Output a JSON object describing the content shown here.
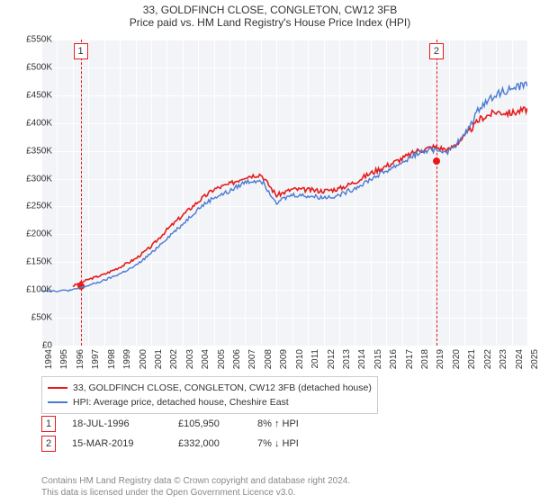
{
  "title_line1": "33, GOLDFINCH CLOSE, CONGLETON, CW12 3FB",
  "title_line2": "Price paid vs. HM Land Registry's House Price Index (HPI)",
  "chart": {
    "type": "line",
    "background_color": "#f2f4f8",
    "grid_color": "#ffffff",
    "ylim": [
      0,
      550000
    ],
    "ytick_step": 50000,
    "yticklabels": [
      "£0",
      "£50K",
      "£100K",
      "£150K",
      "£200K",
      "£250K",
      "£300K",
      "£350K",
      "£400K",
      "£450K",
      "£500K",
      "£550K"
    ],
    "x_years": [
      1994,
      1995,
      1996,
      1997,
      1998,
      1999,
      2000,
      2001,
      2002,
      2003,
      2004,
      2005,
      2006,
      2007,
      2008,
      2009,
      2010,
      2011,
      2012,
      2013,
      2014,
      2015,
      2016,
      2017,
      2018,
      2019,
      2020,
      2021,
      2022,
      2023,
      2024,
      2025
    ],
    "series": [
      {
        "name": "33, GOLDFINCH CLOSE, CONGLETON, CW12 3FB (detached house)",
        "color": "#e51b1b",
        "width": 1.6,
        "values_k": [
          null,
          null,
          107,
          119,
          128,
          141,
          156,
          178,
          208,
          234,
          259,
          281,
          290,
          304,
          308,
          270,
          281,
          280,
          278,
          282,
          294,
          310,
          323,
          336,
          350,
          357,
          352,
          376,
          408,
          420,
          418,
          425
        ]
      },
      {
        "name": "HPI: Average price, detached house, Cheshire East",
        "color": "#4a7bd1",
        "width": 1.4,
        "values_k": [
          99,
          98,
          100,
          108,
          117,
          129,
          143,
          166,
          193,
          218,
          246,
          266,
          277,
          294,
          298,
          258,
          271,
          269,
          266,
          270,
          283,
          299,
          314,
          329,
          346,
          352,
          349,
          378,
          430,
          452,
          462,
          470
        ]
      }
    ],
    "markers": [
      {
        "label": "1",
        "year": 1996.5,
        "color": "#e51b1b",
        "point_y_k": 107
      },
      {
        "label": "2",
        "year": 2019.2,
        "color": "#e51b1b",
        "point_y_k": 332
      }
    ]
  },
  "legend": {
    "items": [
      {
        "color": "#e51b1b",
        "label": "33, GOLDFINCH CLOSE, CONGLETON, CW12 3FB (detached house)"
      },
      {
        "color": "#4a7bd1",
        "label": "HPI: Average price, detached house, Cheshire East"
      }
    ]
  },
  "datapoints": [
    {
      "n": "1",
      "color": "#e51b1b",
      "date": "18-JUL-1996",
      "price": "£105,950",
      "delta": "8% ↑ HPI"
    },
    {
      "n": "2",
      "color": "#e51b1b",
      "date": "15-MAR-2019",
      "price": "£332,000",
      "delta": "7% ↓ HPI"
    }
  ],
  "footer_line1": "Contains HM Land Registry data © Crown copyright and database right 2024.",
  "footer_line2": "This data is licensed under the Open Government Licence v3.0."
}
